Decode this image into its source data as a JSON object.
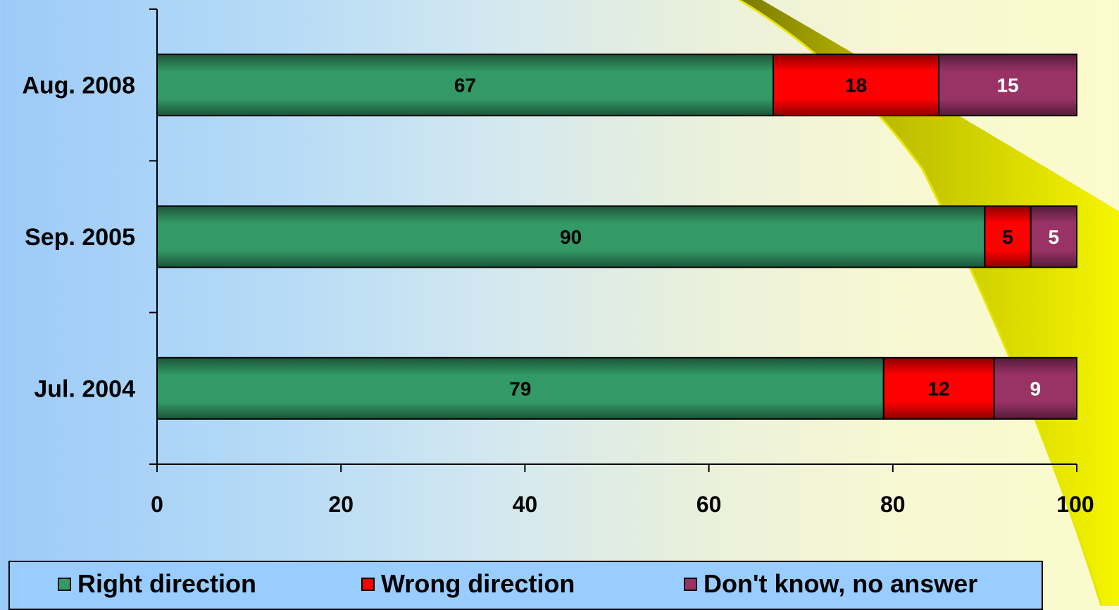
{
  "chart_data": {
    "type": "bar",
    "orientation": "horizontal",
    "stacked": true,
    "categories": [
      "Aug. 2008",
      "Sep. 2005",
      "Jul. 2004"
    ],
    "series": [
      {
        "name": "Right direction",
        "values": [
          67,
          90,
          79
        ],
        "color": "#339966",
        "label_color": "#000000"
      },
      {
        "name": "Wrong direction",
        "values": [
          18,
          5,
          12
        ],
        "color": "#ff0000",
        "label_color": "#000000"
      },
      {
        "name": "Don't know, no answer",
        "values": [
          15,
          5,
          9
        ],
        "color": "#993366",
        "label_color": "#ffffff"
      }
    ],
    "xlim": [
      0,
      100
    ],
    "xticks": [
      0,
      20,
      40,
      60,
      80,
      100
    ],
    "grid": false,
    "legend_position": "bottom"
  }
}
